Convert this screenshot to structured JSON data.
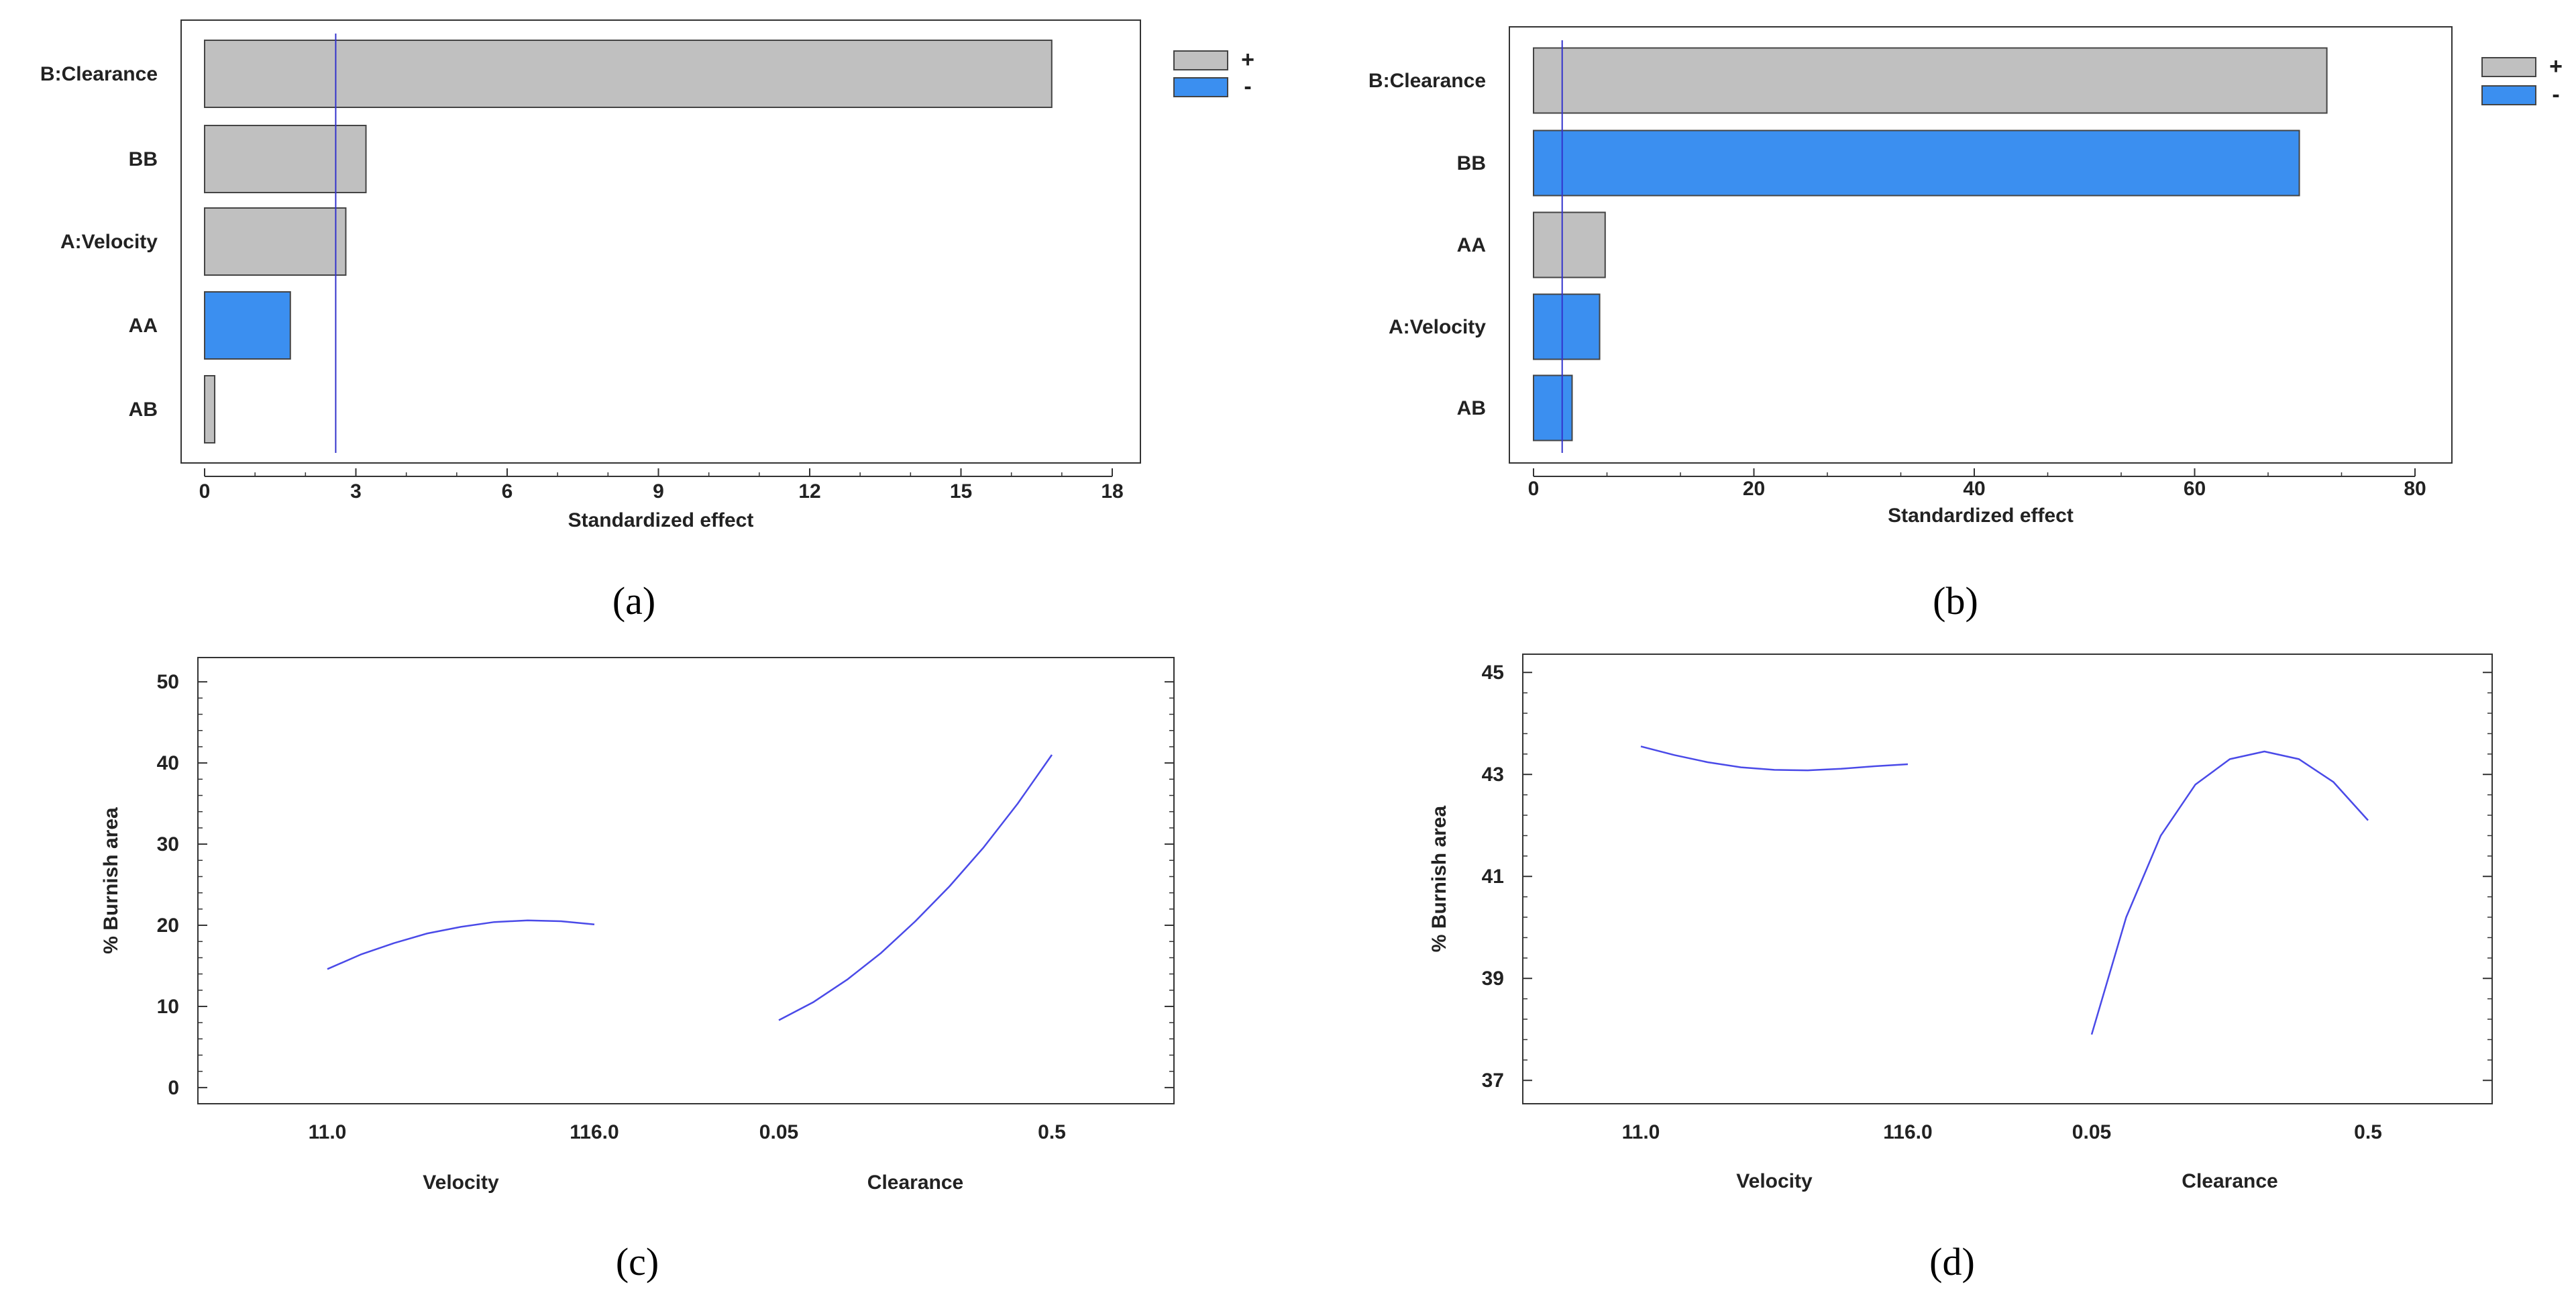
{
  "colors": {
    "positive": "#c0c0c0",
    "negative": "#3b8ff0",
    "refline": "#3333cc",
    "curve": "#4a4ae8",
    "frame": "#333333"
  },
  "chart_data": [
    {
      "id": "a",
      "type": "bar",
      "orientation": "horizontal",
      "panel_label": "(a)",
      "panel_letter": "a",
      "xlabel": "Standardized effect",
      "xlim": [
        0,
        18
      ],
      "xticks": [
        "0",
        "3",
        "6",
        "9",
        "12",
        "15",
        "18"
      ],
      "reference_line": 2.6,
      "categories": [
        "B:Clearance",
        "BB",
        "A:Velocity",
        "AA",
        "AB"
      ],
      "values": [
        16.8,
        3.2,
        2.8,
        1.7,
        0.2
      ],
      "signs": [
        "+",
        "+",
        "+",
        "-",
        "+"
      ],
      "legend": [
        "+",
        "-"
      ]
    },
    {
      "id": "b",
      "type": "bar",
      "orientation": "horizontal",
      "panel_label": "(b)",
      "panel_letter": "b",
      "xlabel": "Standardized effect",
      "xlim": [
        0,
        80
      ],
      "xticks": [
        "0",
        "20",
        "40",
        "60",
        "80"
      ],
      "reference_line": 2.6,
      "categories": [
        "B:Clearance",
        "BB",
        "AA",
        "A:Velocity",
        "AB"
      ],
      "values": [
        72,
        69.5,
        6.5,
        6,
        3.5
      ],
      "signs": [
        "+",
        "-",
        "+",
        "-",
        "-"
      ],
      "legend": [
        "+",
        "-"
      ]
    },
    {
      "id": "c",
      "type": "line",
      "panel_label": "(c)",
      "panel_letter": "c",
      "ylabel": "% Burnish area",
      "ylim": [
        -1,
        52
      ],
      "yticks": [
        "0",
        "10",
        "20",
        "30",
        "40",
        "50"
      ],
      "factors": [
        {
          "name": "Velocity",
          "low_label": "11.0",
          "high_label": "116.0",
          "x": [
            0,
            0.125,
            0.25,
            0.375,
            0.5,
            0.625,
            0.75,
            0.875,
            1
          ],
          "y": [
            14.6,
            16.4,
            17.8,
            19.0,
            19.8,
            20.4,
            20.6,
            20.5,
            20.1
          ]
        },
        {
          "name": "Clearance",
          "low_label": "0.05",
          "high_label": "0.5",
          "x": [
            0,
            0.125,
            0.25,
            0.375,
            0.5,
            0.625,
            0.75,
            0.875,
            1
          ],
          "y": [
            8.3,
            10.5,
            13.3,
            16.6,
            20.5,
            24.8,
            29.6,
            35.0,
            41.0
          ]
        }
      ]
    },
    {
      "id": "d",
      "type": "line",
      "panel_label": "(d)",
      "panel_letter": "d",
      "ylabel": "% Burnish area",
      "ylim": [
        36.7,
        45.2
      ],
      "yticks": [
        "37",
        "39",
        "41",
        "43",
        "45"
      ],
      "factors": [
        {
          "name": "Velocity",
          "low_label": "11.0",
          "high_label": "116.0",
          "x": [
            0,
            0.125,
            0.25,
            0.375,
            0.5,
            0.625,
            0.75,
            0.875,
            1
          ],
          "y": [
            43.55,
            43.38,
            43.24,
            43.14,
            43.09,
            43.08,
            43.11,
            43.16,
            43.2
          ]
        },
        {
          "name": "Clearance",
          "low_label": "0.05",
          "high_label": "0.5",
          "x": [
            0,
            0.125,
            0.25,
            0.375,
            0.5,
            0.625,
            0.75,
            0.875,
            1
          ],
          "y": [
            37.9,
            40.2,
            41.8,
            42.8,
            43.3,
            43.45,
            43.3,
            42.85,
            42.1
          ]
        }
      ]
    }
  ]
}
